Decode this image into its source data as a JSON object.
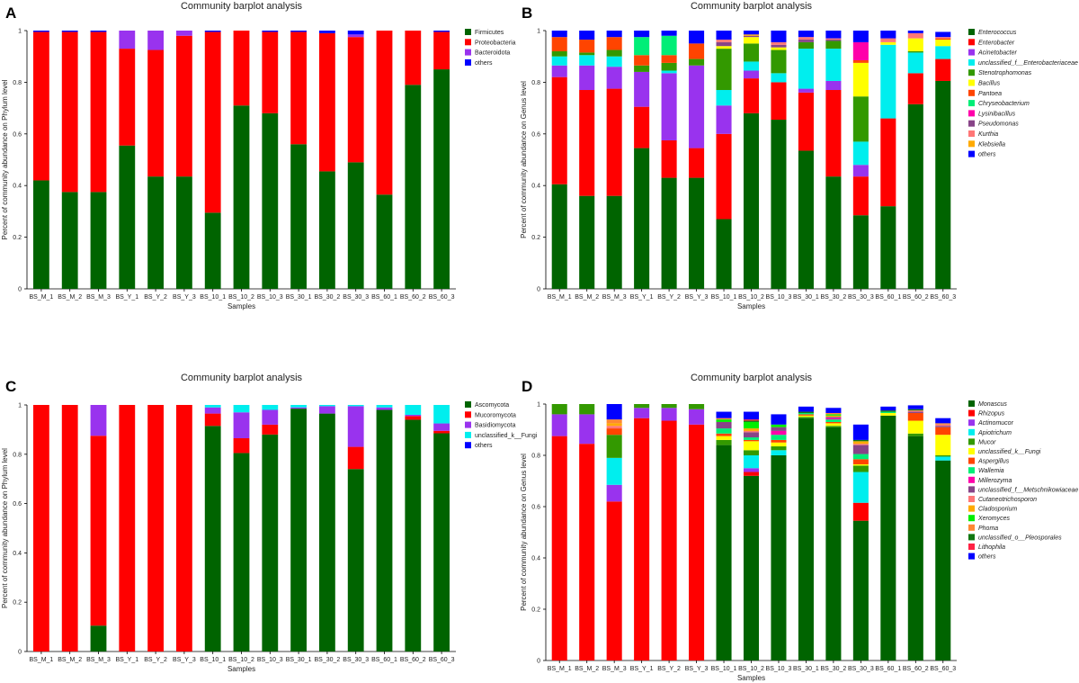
{
  "chart_data": [
    {
      "letter": "A",
      "type": "bar",
      "stacked": true,
      "title": "Community barplot analysis",
      "xlabel": "Samples",
      "ylabel": "Percent of community abundance on Phylum level",
      "ylim": [
        0,
        1
      ],
      "yticks": [
        "0",
        "0.2",
        "0.4",
        "0.6",
        "0.8",
        "1"
      ],
      "legend_italic": false,
      "categories": [
        "BS_M_1",
        "BS_M_2",
        "BS_M_3",
        "BS_Y_1",
        "BS_Y_2",
        "BS_Y_3",
        "BS_10_1",
        "BS_10_2",
        "BS_10_3",
        "BS_30_1",
        "BS_30_2",
        "BS_30_3",
        "BS_60_1",
        "BS_60_2",
        "BS_60_3"
      ],
      "series": [
        {
          "name": "Firmicutes",
          "color": "#006400",
          "values": [
            0.42,
            0.375,
            0.375,
            0.555,
            0.435,
            0.435,
            0.295,
            0.71,
            0.68,
            0.56,
            0.455,
            0.49,
            0.365,
            0.79,
            0.85
          ]
        },
        {
          "name": "Proteobacteria",
          "color": "#ff0000",
          "values": [
            0.575,
            0.62,
            0.62,
            0.375,
            0.49,
            0.545,
            0.7,
            0.29,
            0.315,
            0.435,
            0.535,
            0.485,
            0.635,
            0.21,
            0.145
          ]
        },
        {
          "name": "Bacteroidota",
          "color": "#9933ee",
          "values": [
            0.0,
            0.0,
            0.0,
            0.07,
            0.075,
            0.02,
            0.0,
            0.0,
            0.0,
            0.0,
            0.0,
            0.01,
            0.0,
            0.0,
            0.0
          ]
        },
        {
          "name": "others",
          "color": "#0000ff",
          "values": [
            0.005,
            0.005,
            0.005,
            0.0,
            0.0,
            0.0,
            0.005,
            0.0,
            0.005,
            0.005,
            0.01,
            0.015,
            0.0,
            0.0,
            0.005
          ]
        }
      ]
    },
    {
      "letter": "B",
      "type": "bar",
      "stacked": true,
      "title": "Community barplot analysis",
      "xlabel": "Samples",
      "ylabel": "Percent of community abundance on Genus level",
      "ylim": [
        0,
        1
      ],
      "yticks": [
        "0",
        "0.2",
        "0.4",
        "0.6",
        "0.8",
        "1"
      ],
      "legend_italic": true,
      "categories": [
        "BS_M_1",
        "BS_M_2",
        "BS_M_3",
        "BS_Y_1",
        "BS_Y_2",
        "BS_Y_3",
        "BS_10_1",
        "BS_10_2",
        "BS_10_3",
        "BS_30_1",
        "BS_30_2",
        "BS_30_3",
        "BS_60_1",
        "BS_60_2",
        "BS_60_3"
      ],
      "series": [
        {
          "name": "Enterococcus",
          "color": "#006400",
          "values": [
            0.405,
            0.36,
            0.36,
            0.545,
            0.43,
            0.43,
            0.27,
            0.68,
            0.655,
            0.535,
            0.435,
            0.285,
            0.32,
            0.715,
            0.805
          ]
        },
        {
          "name": "Enterobacter",
          "color": "#ff0000",
          "values": [
            0.415,
            0.41,
            0.415,
            0.16,
            0.145,
            0.115,
            0.33,
            0.135,
            0.145,
            0.225,
            0.335,
            0.15,
            0.34,
            0.12,
            0.085
          ]
        },
        {
          "name": "Acinetobacter",
          "color": "#9933ee",
          "values": [
            0.045,
            0.095,
            0.085,
            0.135,
            0.26,
            0.32,
            0.11,
            0.03,
            0.0,
            0.015,
            0.035,
            0.045,
            0.0,
            0.0,
            0.0
          ]
        },
        {
          "name": "unclassified_f__Enterobacteriaceae",
          "color": "#00eeee",
          "values": [
            0.035,
            0.04,
            0.04,
            0.0,
            0.01,
            0.0,
            0.06,
            0.035,
            0.035,
            0.155,
            0.125,
            0.09,
            0.285,
            0.08,
            0.05
          ]
        },
        {
          "name": "Stenotrophomonas",
          "color": "#339900",
          "values": [
            0.02,
            0.01,
            0.025,
            0.025,
            0.03,
            0.025,
            0.16,
            0.07,
            0.09,
            0.025,
            0.03,
            0.175,
            0.0,
            0.005,
            0.0
          ]
        },
        {
          "name": "Bacillus",
          "color": "#ffff00",
          "values": [
            0.0,
            0.0,
            0.0,
            0.0,
            0.0,
            0.0,
            0.01,
            0.025,
            0.01,
            0.0,
            0.0,
            0.13,
            0.01,
            0.05,
            0.025
          ]
        },
        {
          "name": "Pantoea",
          "color": "#ff4400",
          "values": [
            0.055,
            0.05,
            0.05,
            0.04,
            0.03,
            0.06,
            0.0,
            0.0,
            0.0,
            0.0,
            0.0,
            0.01,
            0.0,
            0.0,
            0.005
          ]
        },
        {
          "name": "Chryseobacterium",
          "color": "#00ee77",
          "values": [
            0.0,
            0.0,
            0.0,
            0.07,
            0.075,
            0.0,
            0.0,
            0.0,
            0.0,
            0.0,
            0.0,
            0.0,
            0.0,
            0.0,
            0.0
          ]
        },
        {
          "name": "Lysinibacillus",
          "color": "#ff00aa",
          "values": [
            0.0,
            0.0,
            0.0,
            0.0,
            0.0,
            0.0,
            0.0,
            0.0,
            0.0,
            0.0,
            0.0,
            0.07,
            0.0,
            0.0,
            0.0
          ]
        },
        {
          "name": "Pseudomonas",
          "color": "#884488",
          "values": [
            0.0,
            0.0,
            0.0,
            0.0,
            0.0,
            0.0,
            0.015,
            0.005,
            0.01,
            0.01,
            0.005,
            0.0,
            0.0,
            0.0,
            0.0
          ]
        },
        {
          "name": "Kurthia",
          "color": "#ff7777",
          "values": [
            0.0,
            0.0,
            0.0,
            0.0,
            0.0,
            0.0,
            0.01,
            0.0,
            0.01,
            0.01,
            0.005,
            0.0,
            0.015,
            0.02,
            0.005
          ]
        },
        {
          "name": "Klebsiella",
          "color": "#ffaa00",
          "values": [
            0.0,
            0.0,
            0.0,
            0.0,
            0.0,
            0.0,
            0.0,
            0.005,
            0.0,
            0.0,
            0.0,
            0.0,
            0.0,
            0.0,
            0.0
          ]
        },
        {
          "name": "others",
          "color": "#0000ff",
          "values": [
            0.025,
            0.035,
            0.025,
            0.025,
            0.02,
            0.05,
            0.035,
            0.015,
            0.045,
            0.025,
            0.03,
            0.045,
            0.03,
            0.01,
            0.02
          ]
        }
      ]
    },
    {
      "letter": "C",
      "type": "bar",
      "stacked": true,
      "title": "Community barplot analysis",
      "xlabel": "Samples",
      "ylabel": "Percent of community abundance on Phylum level",
      "ylim": [
        0,
        1
      ],
      "yticks": [
        "0",
        "0.2",
        "0.4",
        "0.6",
        "0.8",
        "1"
      ],
      "legend_italic": false,
      "categories": [
        "BS_M_1",
        "BS_M_2",
        "BS_M_3",
        "BS_Y_1",
        "BS_Y_2",
        "BS_Y_3",
        "BS_10_1",
        "BS_10_2",
        "BS_10_3",
        "BS_30_1",
        "BS_30_2",
        "BS_30_3",
        "BS_60_1",
        "BS_60_2",
        "BS_60_3"
      ],
      "series": [
        {
          "name": "Ascomycota",
          "color": "#006400",
          "values": [
            0.0,
            0.0,
            0.105,
            0.0,
            0.0,
            0.0,
            0.915,
            0.805,
            0.88,
            0.985,
            0.965,
            0.74,
            0.98,
            0.94,
            0.885
          ]
        },
        {
          "name": "Mucoromycota",
          "color": "#ff0000",
          "values": [
            1.0,
            1.0,
            0.77,
            1.0,
            1.0,
            1.0,
            0.05,
            0.06,
            0.04,
            0.0,
            0.0,
            0.09,
            0.0,
            0.015,
            0.01
          ]
        },
        {
          "name": "Basidiomycota",
          "color": "#9933ee",
          "values": [
            0.0,
            0.0,
            0.125,
            0.0,
            0.0,
            0.0,
            0.025,
            0.105,
            0.06,
            0.005,
            0.03,
            0.165,
            0.01,
            0.005,
            0.03
          ]
        },
        {
          "name": "unclassified_k__Fungi",
          "color": "#00eeee",
          "values": [
            0.0,
            0.0,
            0.0,
            0.0,
            0.0,
            0.0,
            0.01,
            0.03,
            0.02,
            0.01,
            0.005,
            0.005,
            0.01,
            0.04,
            0.075
          ]
        },
        {
          "name": "others",
          "color": "#0000ff",
          "values": [
            0.0,
            0.0,
            0.0,
            0.0,
            0.0,
            0.0,
            0.0,
            0.0,
            0.0,
            0.0,
            0.0,
            0.0,
            0.0,
            0.0,
            0.0
          ]
        }
      ]
    },
    {
      "letter": "D",
      "type": "bar",
      "stacked": true,
      "title": "Community barplot analysis",
      "xlabel": "Samples",
      "ylabel": "Percent of community abundance on Genus level",
      "ylim": [
        0,
        1
      ],
      "yticks": [
        "0",
        "0.2",
        "0.4",
        "0.6",
        "0.8",
        "1"
      ],
      "legend_italic": true,
      "categories": [
        "BS_M_1",
        "BS_M_2",
        "BS_M_3",
        "BS_Y_1",
        "BS_Y_2",
        "BS_Y_3",
        "BS_10_1",
        "BS_10_2",
        "BS_10_3",
        "BS_30_1",
        "BS_30_2",
        "BS_30_3",
        "BS_60_1",
        "BS_60_2",
        "BS_60_3"
      ],
      "series": [
        {
          "name": "Monascus",
          "color": "#006400",
          "values": [
            0.0,
            0.0,
            0.0,
            0.0,
            0.0,
            0.0,
            0.84,
            0.72,
            0.8,
            0.945,
            0.91,
            0.545,
            0.955,
            0.875,
            0.78
          ]
        },
        {
          "name": "Rhizopus",
          "color": "#ff0000",
          "values": [
            0.875,
            0.845,
            0.62,
            0.945,
            0.935,
            0.92,
            0.0,
            0.015,
            0.0,
            0.0,
            0.0,
            0.07,
            0.0,
            0.0,
            0.0
          ]
        },
        {
          "name": "Actinomucor",
          "color": "#9933ee",
          "values": [
            0.085,
            0.115,
            0.065,
            0.04,
            0.05,
            0.06,
            0.0,
            0.015,
            0.0,
            0.0,
            0.0,
            0.0,
            0.0,
            0.0,
            0.0
          ]
        },
        {
          "name": "Apiotrichum",
          "color": "#00eeee",
          "values": [
            0.0,
            0.0,
            0.105,
            0.0,
            0.0,
            0.0,
            0.0,
            0.05,
            0.02,
            0.0,
            0.0,
            0.12,
            0.0,
            0.0,
            0.015
          ]
        },
        {
          "name": "Mucor",
          "color": "#339900",
          "values": [
            0.04,
            0.04,
            0.09,
            0.015,
            0.015,
            0.02,
            0.02,
            0.02,
            0.015,
            0.005,
            0.005,
            0.025,
            0.0,
            0.01,
            0.005
          ]
        },
        {
          "name": "unclassified_k__Fungi",
          "color": "#ffff00",
          "values": [
            0.0,
            0.0,
            0.0,
            0.0,
            0.0,
            0.0,
            0.015,
            0.035,
            0.015,
            0.005,
            0.01,
            0.005,
            0.01,
            0.05,
            0.08
          ]
        },
        {
          "name": "Aspergillus",
          "color": "#ff4400",
          "values": [
            0.0,
            0.0,
            0.025,
            0.0,
            0.0,
            0.0,
            0.01,
            0.005,
            0.01,
            0.005,
            0.005,
            0.02,
            0.0,
            0.03,
            0.03
          ]
        },
        {
          "name": "Wallemia",
          "color": "#00ee77",
          "values": [
            0.0,
            0.0,
            0.0,
            0.0,
            0.0,
            0.0,
            0.02,
            0.01,
            0.02,
            0.005,
            0.01,
            0.02,
            0.005,
            0.0,
            0.0
          ]
        },
        {
          "name": "Millerozyma",
          "color": "#ff00aa",
          "values": [
            0.0,
            0.0,
            0.0,
            0.0,
            0.0,
            0.0,
            0.0,
            0.0,
            0.015,
            0.0,
            0.005,
            0.0,
            0.0,
            0.0,
            0.0
          ]
        },
        {
          "name": "unclassified_f__Metschnikowiaceae",
          "color": "#884488",
          "values": [
            0.0,
            0.0,
            0.0,
            0.0,
            0.0,
            0.0,
            0.025,
            0.02,
            0.015,
            0.0,
            0.005,
            0.035,
            0.0,
            0.005,
            0.005
          ]
        },
        {
          "name": "Cutaneotrichosporon",
          "color": "#ff7777",
          "values": [
            0.0,
            0.0,
            0.01,
            0.0,
            0.0,
            0.0,
            0.0,
            0.005,
            0.0,
            0.0,
            0.0,
            0.005,
            0.0,
            0.005,
            0.005
          ]
        },
        {
          "name": "Cladosporium",
          "color": "#ffaa00",
          "values": [
            0.0,
            0.0,
            0.01,
            0.0,
            0.0,
            0.0,
            0.0,
            0.01,
            0.0,
            0.0,
            0.005,
            0.01,
            0.0,
            0.0,
            0.0
          ]
        },
        {
          "name": "Xeromyces",
          "color": "#00ee00",
          "values": [
            0.0,
            0.0,
            0.0,
            0.0,
            0.0,
            0.0,
            0.01,
            0.025,
            0.01,
            0.0,
            0.005,
            0.0,
            0.0,
            0.0,
            0.0
          ]
        },
        {
          "name": "Phoma",
          "color": "#ff8833",
          "values": [
            0.0,
            0.0,
            0.015,
            0.0,
            0.0,
            0.0,
            0.005,
            0.0,
            0.0,
            0.0,
            0.005,
            0.0,
            0.0,
            0.0,
            0.005
          ]
        },
        {
          "name": "unclassified_o__Pleosporales",
          "color": "#117711",
          "values": [
            0.0,
            0.0,
            0.0,
            0.0,
            0.0,
            0.0,
            0.0,
            0.005,
            0.0,
            0.005,
            0.0,
            0.005,
            0.005,
            0.005,
            0.0
          ]
        },
        {
          "name": "Lithophila",
          "color": "#ff2244",
          "values": [
            0.0,
            0.0,
            0.0,
            0.0,
            0.0,
            0.0,
            0.0,
            0.005,
            0.0,
            0.0,
            0.0,
            0.0,
            0.0,
            0.0,
            0.0
          ]
        },
        {
          "name": "others",
          "color": "#0000ff",
          "values": [
            0.0,
            0.0,
            0.06,
            0.0,
            0.0,
            0.0,
            0.025,
            0.03,
            0.04,
            0.02,
            0.02,
            0.06,
            0.015,
            0.015,
            0.02
          ]
        }
      ]
    }
  ]
}
